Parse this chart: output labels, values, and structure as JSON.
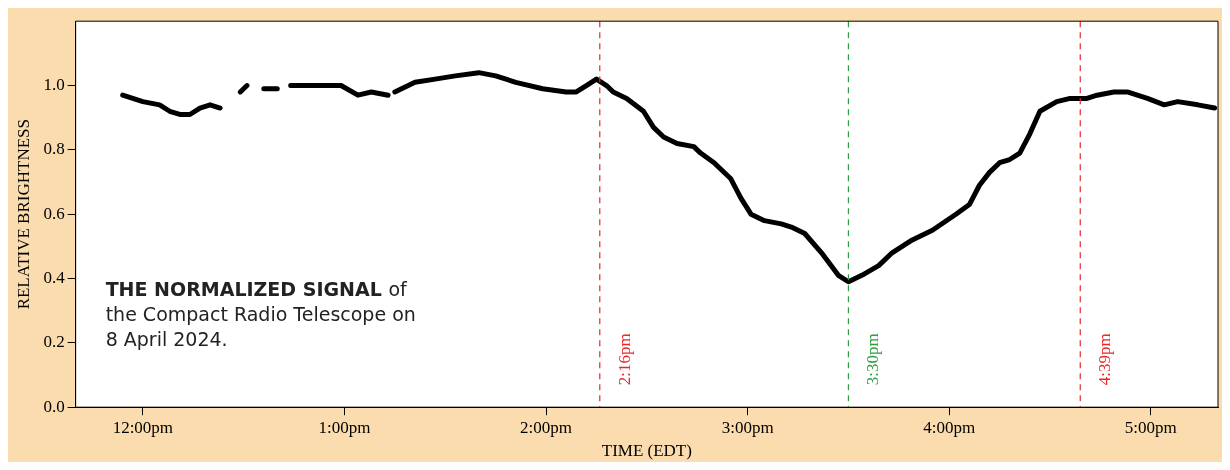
{
  "chart_data": {
    "type": "line",
    "xlabel": "TIME (EDT)",
    "ylabel": "RELATIVE BRIGHTNESS",
    "annotations": [
      "THE NORMALIZED SIGNAL",
      "of the Compact Radio Telescope on 8 April 2024."
    ],
    "xlim": [
      "2024-04-08T11:40",
      "2024-04-08T17:20"
    ],
    "ylim": [
      0,
      1.2
    ],
    "xticks": [
      {
        "value": "2024-04-08T12:00",
        "label": "12:00pm"
      },
      {
        "value": "2024-04-08T13:00",
        "label": "1:00pm"
      },
      {
        "value": "2024-04-08T14:00",
        "label": "2:00pm"
      },
      {
        "value": "2024-04-08T15:00",
        "label": "3:00pm"
      },
      {
        "value": "2024-04-08T16:00",
        "label": "4:00pm"
      },
      {
        "value": "2024-04-08T17:00",
        "label": "5:00pm"
      }
    ],
    "yticks": [
      {
        "value": 0,
        "label": "0.0"
      },
      {
        "value": 0.2,
        "label": "0.2"
      },
      {
        "value": 0.4,
        "label": "0.4"
      },
      {
        "value": 0.6,
        "label": "0.6"
      },
      {
        "value": 0.8,
        "label": "0.8"
      },
      {
        "value": 1,
        "label": "1.0"
      }
    ],
    "grid": false,
    "legend": false,
    "marker": "none",
    "line_style": "solid",
    "ref_lines": [
      {
        "axis": "x",
        "value": "2024-04-08T14:16",
        "label": "2:16pm",
        "color": "#e8282b",
        "line_style": "dashed"
      },
      {
        "axis": "x",
        "value": "2024-04-08T15:30",
        "label": "3:30pm",
        "color": "#2ca040",
        "line_style": "dashed"
      },
      {
        "axis": "x",
        "value": "2024-04-08T16:39",
        "label": "4:39pm",
        "color": "#e8282b",
        "line_style": "dashed"
      }
    ],
    "series": [
      {
        "color": "#000000",
        "x": [
          "2024-04-08T11:54",
          "2024-04-08T11:57",
          "2024-04-08T12:00",
          "2024-04-08T12:05",
          "2024-04-08T12:08",
          "2024-04-08T12:11",
          "2024-04-08T12:14",
          "2024-04-08T12:17",
          "2024-04-08T12:20",
          "2024-04-08T12:23",
          "2024-04-08T12:26",
          "2024-04-08T12:29",
          "2024-04-08T12:31",
          "2024-04-08T12:33",
          "2024-04-08T12:36",
          "2024-04-08T12:40",
          "2024-04-08T12:43",
          "2024-04-08T12:44",
          "2024-04-08T12:47",
          "2024-04-08T12:53",
          "2024-04-08T12:59",
          "2024-04-08T13:04",
          "2024-04-08T13:08",
          "2024-04-08T13:13",
          "2024-04-08T13:14",
          "2024-04-08T13:15",
          "2024-04-08T13:21",
          "2024-04-08T13:27",
          "2024-04-08T13:33",
          "2024-04-08T13:40",
          "2024-04-08T13:45",
          "2024-04-08T13:51",
          "2024-04-08T13:59",
          "2024-04-08T14:06",
          "2024-04-08T14:09",
          "2024-04-08T14:12",
          "2024-04-08T14:15",
          "2024-04-08T14:18",
          "2024-04-08T14:20",
          "2024-04-08T14:24",
          "2024-04-08T14:29",
          "2024-04-08T14:32",
          "2024-04-08T14:35",
          "2024-04-08T14:39",
          "2024-04-08T14:44",
          "2024-04-08T14:46",
          "2024-04-08T14:50",
          "2024-04-08T14:55",
          "2024-04-08T14:58",
          "2024-04-08T15:01",
          "2024-04-08T15:05",
          "2024-04-08T15:10",
          "2024-04-08T15:13",
          "2024-04-08T15:17",
          "2024-04-08T15:22",
          "2024-04-08T15:27",
          "2024-04-08T15:30",
          "2024-04-08T15:34",
          "2024-04-08T15:39",
          "2024-04-08T15:43",
          "2024-04-08T15:49",
          "2024-04-08T15:55",
          "2024-04-08T16:02",
          "2024-04-08T16:06",
          "2024-04-08T16:09",
          "2024-04-08T16:12",
          "2024-04-08T16:15",
          "2024-04-08T16:18",
          "2024-04-08T16:21",
          "2024-04-08T16:24",
          "2024-04-08T16:27",
          "2024-04-08T16:32",
          "2024-04-08T16:36",
          "2024-04-08T16:41",
          "2024-04-08T16:44",
          "2024-04-08T16:49",
          "2024-04-08T16:53",
          "2024-04-08T16:59",
          "2024-04-08T17:04",
          "2024-04-08T17:08",
          "2024-04-08T17:14",
          "2024-04-08T17:19"
        ],
        "values": [
          0.97,
          0.96,
          0.95,
          0.94,
          0.92,
          0.91,
          0.91,
          0.93,
          0.94,
          0.93,
          null,
          0.98,
          1.0,
          null,
          0.99,
          0.99,
          null,
          1.0,
          1.0,
          1.0,
          1.0,
          0.97,
          0.98,
          0.97,
          null,
          0.98,
          1.01,
          1.02,
          1.03,
          1.04,
          1.03,
          1.01,
          0.99,
          0.98,
          0.98,
          1.0,
          1.02,
          1.0,
          0.98,
          0.96,
          0.92,
          0.87,
          0.84,
          0.82,
          0.81,
          0.79,
          0.76,
          0.71,
          0.65,
          0.6,
          0.58,
          0.57,
          0.56,
          0.54,
          0.48,
          0.41,
          0.39,
          0.41,
          0.44,
          0.48,
          0.52,
          0.55,
          0.6,
          0.63,
          0.69,
          0.73,
          0.76,
          0.77,
          0.79,
          0.85,
          0.92,
          0.95,
          0.96,
          0.96,
          0.97,
          0.98,
          0.98,
          0.96,
          0.94,
          0.95,
          0.94,
          0.93
        ]
      }
    ]
  }
}
